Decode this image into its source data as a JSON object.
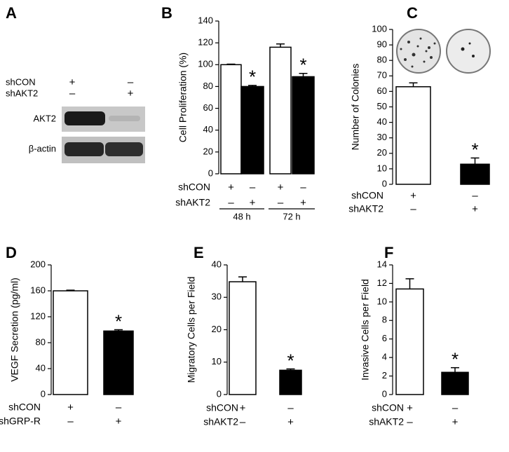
{
  "blot": {
    "panel": "A",
    "rows": [
      {
        "name": "shCON",
        "signs": [
          "+",
          "–"
        ]
      },
      {
        "name": "shAKT2",
        "signs": [
          "–",
          "+"
        ]
      }
    ],
    "bands": [
      "AKT2",
      "β-actin"
    ]
  },
  "chart_data": [
    {
      "type": "bar",
      "panel": "B",
      "ylabel": "Cell Proliferation (%)",
      "ylim": [
        0,
        140
      ],
      "yticks": [
        0,
        20,
        40,
        60,
        80,
        100,
        120,
        140
      ],
      "values": [
        100,
        80,
        116,
        89
      ],
      "errors": [
        0.5,
        1,
        3,
        3
      ],
      "colors": [
        "#ffffff",
        "#000000",
        "#ffffff",
        "#000000"
      ],
      "markers": [
        null,
        "*",
        null,
        "*"
      ],
      "conditions": [
        {
          "name": "shCON",
          "signs": [
            "+",
            "–",
            "+",
            "–"
          ]
        },
        {
          "name": "shAKT2",
          "signs": [
            "–",
            "+",
            "–",
            "+"
          ]
        }
      ],
      "groups": [
        "48 h",
        "72 h"
      ]
    },
    {
      "type": "bar",
      "panel": "C",
      "ylabel": "Number of Colonies",
      "ylim": [
        0,
        100
      ],
      "yticks": [
        0,
        10,
        20,
        30,
        40,
        50,
        60,
        70,
        80,
        90,
        100
      ],
      "values": [
        63,
        13
      ],
      "errors": [
        2.5,
        4
      ],
      "colors": [
        "#ffffff",
        "#000000"
      ],
      "markers": [
        null,
        "*"
      ],
      "conditions": [
        {
          "name": "shCON",
          "signs": [
            "+",
            "–"
          ]
        },
        {
          "name": "shAKT2",
          "signs": [
            "–",
            "+"
          ]
        }
      ]
    },
    {
      "type": "bar",
      "panel": "D",
      "ylabel": "VEGF Secretion (pg/ml)",
      "ylim": [
        0,
        200
      ],
      "yticks": [
        0,
        40,
        80,
        120,
        160,
        200
      ],
      "values": [
        160,
        98
      ],
      "errors": [
        1,
        2
      ],
      "colors": [
        "#ffffff",
        "#000000"
      ],
      "markers": [
        null,
        "*"
      ],
      "conditions": [
        {
          "name": "shCON",
          "signs": [
            "+",
            "–"
          ]
        },
        {
          "name": "shGRP-R",
          "signs": [
            "–",
            "+"
          ]
        }
      ]
    },
    {
      "type": "bar",
      "panel": "E",
      "ylabel": "Migratory Cells per Field",
      "ylim": [
        0,
        40
      ],
      "yticks": [
        0,
        10,
        20,
        30,
        40
      ],
      "values": [
        34.8,
        7.5
      ],
      "errors": [
        1.5,
        0.4
      ],
      "colors": [
        "#ffffff",
        "#000000"
      ],
      "markers": [
        null,
        "*"
      ],
      "conditions": [
        {
          "name": "shCON",
          "signs": [
            "+",
            "–"
          ]
        },
        {
          "name": "shAKT2",
          "signs": [
            "–",
            "+"
          ]
        }
      ]
    },
    {
      "type": "bar",
      "panel": "F",
      "ylabel": "Invasive Cells per Field",
      "ylim": [
        0,
        14
      ],
      "yticks": [
        0,
        2,
        4,
        6,
        8,
        10,
        12,
        14
      ],
      "values": [
        11.4,
        2.4
      ],
      "errors": [
        1.1,
        0.5
      ],
      "colors": [
        "#ffffff",
        "#000000"
      ],
      "markers": [
        null,
        "*"
      ],
      "conditions": [
        {
          "name": "shCON",
          "signs": [
            "+",
            "–"
          ]
        },
        {
          "name": "shAKT2",
          "signs": [
            "–",
            "+"
          ]
        }
      ]
    }
  ]
}
